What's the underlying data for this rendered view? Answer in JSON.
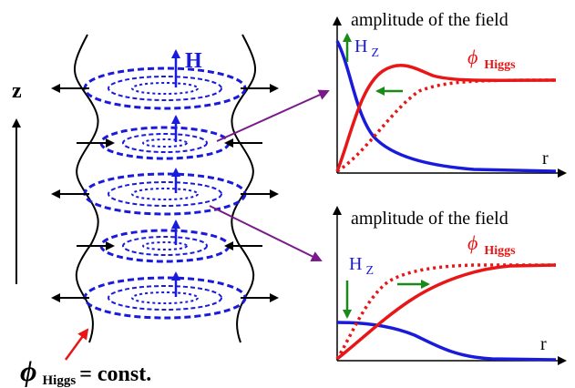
{
  "colors": {
    "black": "#000000",
    "blue": "#1a1adc",
    "red": "#e81616",
    "green": "#1a8a1a",
    "purple": "#7a1a8a"
  },
  "left": {
    "z_label": "z",
    "h_label": "H",
    "bottom_phi": "ϕ",
    "bottom_sub": "Higgs",
    "bottom_rest": " = const."
  },
  "graph_top": {
    "title": "amplitude of the field",
    "hz_main": "H",
    "hz_sub": "Z",
    "phi": "ϕ",
    "phi_sub": "Higgs",
    "r_label": "r"
  },
  "graph_bottom": {
    "title": "amplitude of the field",
    "hz_main": "H",
    "hz_sub": "Z",
    "phi": "ϕ",
    "phi_sub": "Higgs",
    "r_label": "r"
  }
}
